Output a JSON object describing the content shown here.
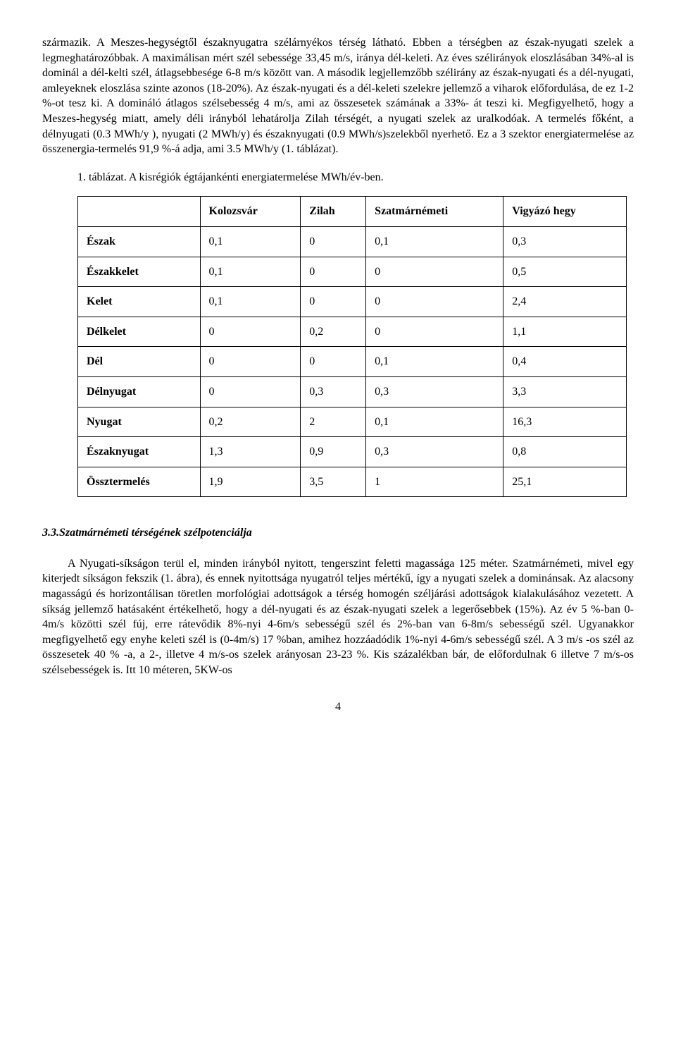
{
  "paragraphs": {
    "p1": "származik. A Meszes-hegységtől északnyugatra szélárnyékos térség látható. Ebben a térségben az észak-nyugati szelek a legmeghatározóbbak. A maximálisan mért szél sebessége 33,45 m/s, iránya dél-keleti. Az éves szélirányok eloszlásában 34%-al is dominál a dél-kelti szél, átlagsebbesége 6-8 m/s között van. A második legjellemzőbb szélirány az észak-nyugati és a dél-nyugati, amleyeknek eloszlása szinte azonos (18-20%). Az észak-nyugati és a dél-keleti szelekre jellemző a viharok előfordulása, de ez 1-2 %-ot tesz ki. A domináló átlagos szélsebesség 4 m/s, ami az összesetek számának a 33%- át teszi ki. Megfigyelhető, hogy a Meszes-hegység miatt, amely déli irányból lehatárolja Zilah térségét, a nyugati szelek az uralkodóak. A termelés főként, a délnyugati (0.3 MWh/y ), nyugati (2 MWh/y) és északnyugati (0.9 MWh/s)szelekből nyerhető. Ez a 3 szektor energiatermelése az összenergia-termelés 91,9 %-á adja, ami 3.5 MWh/y (1. táblázat).",
    "caption": "1. táblázat. A kisrégiók égtájankénti energiatermelése MWh/év-ben.",
    "section": "3.3.Szatmárnémeti térségének szélpotenciálja",
    "p2": "A Nyugati-síkságon terül el, minden irányból nyitott, tengerszint feletti magassága 125 méter. Szatmárnémeti, mivel egy kiterjedt síkságon fekszik (1. ábra), és ennek nyitottsága nyugatról teljes mértékű, így a nyugati szelek a dominánsak. Az alacsony magasságú és horizontálisan töretlen morfológiai adottságok a térség homogén széljárási adottságok kialakulásához vezetett. A síkság jellemző hatásaként értékelhető, hogy a dél-nyugati és az észak-nyugati szelek a legerősebbek (15%). Az év 5 %-ban 0-4m/s közötti szél fúj, erre rátevődik 8%-nyi 4-6m/s sebességű szél és 2%-ban van 6-8m/s sebességű szél. Ugyanakkor megfigyelhető egy enyhe keleti szél is (0-4m/s) 17 %ban, amihez hozzáadódik 1%-nyi 4-6m/s sebességű szél. A 3 m/s -os szél az összesetek 40 % -a, a 2-, illetve 4 m/s-os szelek arányosan 23-23 %. Kis százalékban bár, de előfordulnak 6 illetve 7 m/s-os szélsebességek is. Itt 10 méteren, 5KW-os"
  },
  "table": {
    "columns": [
      "",
      "Kolozsvár",
      "Zilah",
      "Szatmárnémeti",
      "Vigyázó hegy"
    ],
    "rows": [
      [
        "Észak",
        "0,1",
        "0",
        "0,1",
        "0,3"
      ],
      [
        "Északkelet",
        "0,1",
        "0",
        "0",
        "0,5"
      ],
      [
        "Kelet",
        "0,1",
        "0",
        "0",
        "2,4"
      ],
      [
        "Délkelet",
        "0",
        "0,2",
        "0",
        "1,1"
      ],
      [
        "Dél",
        "0",
        "0",
        "0,1",
        "0,4"
      ],
      [
        "Délnyugat",
        "0",
        "0,3",
        "0,3",
        "3,3"
      ],
      [
        "Nyugat",
        "0,2",
        "2",
        "0,1",
        "16,3"
      ],
      [
        "Északnyugat",
        "1,3",
        "0,9",
        "0,3",
        "0,8"
      ],
      [
        "Össztermelés",
        "1,9",
        "3,5",
        "1",
        "25,1"
      ]
    ]
  },
  "pageNumber": "4"
}
